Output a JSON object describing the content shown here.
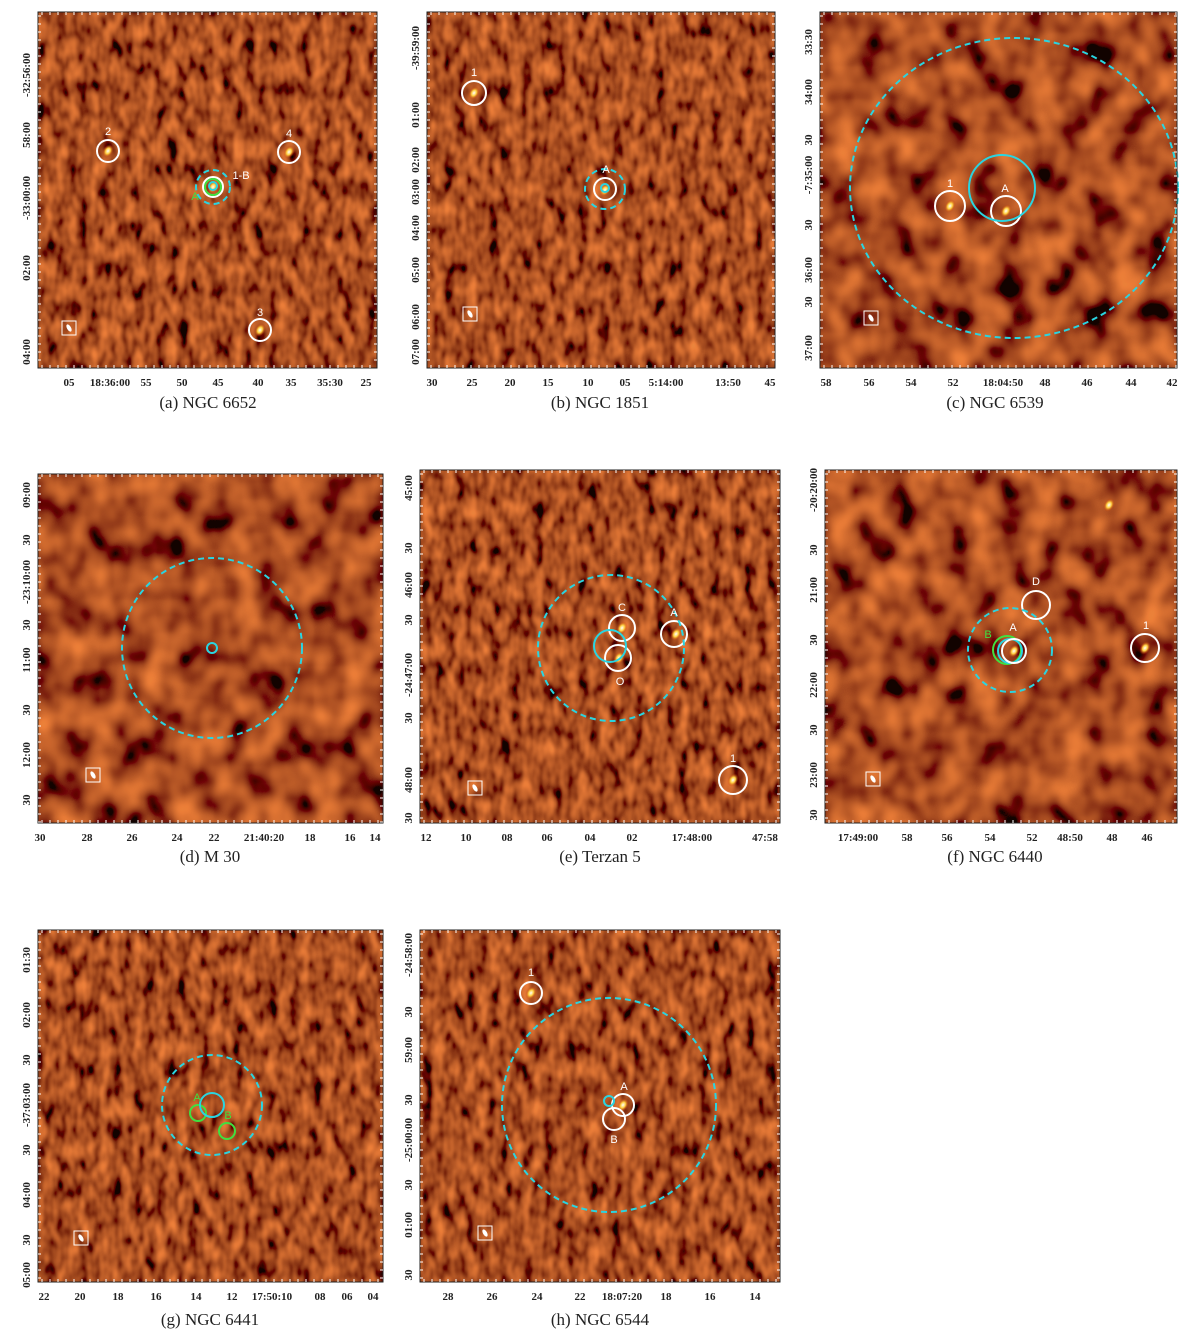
{
  "panels": [
    {
      "caption": "(a) NGC 6652",
      "x_ticks": [
        "05",
        "18:36:00",
        "55",
        "50",
        "45",
        "40",
        "35",
        "35:30",
        "25"
      ],
      "y_ticks": [
        "-32:56:00",
        "58:00",
        "-33:00:00",
        "02:00",
        "04:00"
      ],
      "labels": [
        "2",
        "4",
        "1-B",
        "A",
        "3"
      ]
    },
    {
      "caption": "(b) NGC 1851",
      "x_ticks": [
        "30",
        "25",
        "20",
        "15",
        "10",
        "05",
        "5:14:00",
        "13:50",
        "45"
      ],
      "y_ticks": [
        "-39:59:00",
        "01:00",
        "02:00",
        "03:00",
        "04:00",
        "05:00",
        "06:00",
        "07:00"
      ],
      "labels": [
        "1",
        "A"
      ]
    },
    {
      "caption": "(c) NGC 6539",
      "x_ticks": [
        "58",
        "56",
        "54",
        "52",
        "18:04:50",
        "48",
        "46",
        "44",
        "42"
      ],
      "y_ticks": [
        "33:30",
        "34:00",
        "30",
        "-7:35:00",
        "30",
        "36:00",
        "30",
        "37:00"
      ],
      "labels": [
        "1",
        "A"
      ]
    },
    {
      "caption": "(d) M 30",
      "x_ticks": [
        "30",
        "28",
        "26",
        "24",
        "22",
        "21:40:20",
        "18",
        "16",
        "14"
      ],
      "y_ticks": [
        "09:00",
        "30",
        "-23:10:00",
        "30",
        "11:00",
        "30",
        "12:00",
        "30"
      ],
      "labels": []
    },
    {
      "caption": "(e) Terzan 5",
      "x_ticks": [
        "12",
        "10",
        "08",
        "06",
        "04",
        "02",
        "17:48:00",
        "47:58"
      ],
      "y_ticks": [
        "45:00",
        "30",
        "46:00",
        "30",
        "-24:47:00",
        "30",
        "48:00",
        "30"
      ],
      "labels": [
        "C",
        "A",
        "O",
        "1"
      ]
    },
    {
      "caption": "(f) NGC 6440",
      "x_ticks": [
        "17:49:00",
        "58",
        "56",
        "54",
        "52",
        "48:50",
        "48",
        "46"
      ],
      "y_ticks": [
        "-20:20:00",
        "30",
        "21:00",
        "30",
        "22:00",
        "30",
        "23:00",
        "30"
      ],
      "labels": [
        "D",
        "B",
        "A",
        "1"
      ]
    },
    {
      "caption": "(g) NGC 6441",
      "x_ticks": [
        "22",
        "20",
        "18",
        "16",
        "14",
        "12",
        "17:50:10",
        "08",
        "06",
        "04"
      ],
      "y_ticks": [
        "01:30",
        "02:00",
        "30",
        "-37:03:00",
        "30",
        "04:00",
        "30",
        "05:00"
      ],
      "labels": [
        "A",
        "B"
      ]
    },
    {
      "caption": "(h) NGC 6544",
      "x_ticks": [
        "28",
        "26",
        "24",
        "22",
        "18:07:20",
        "18",
        "16",
        "14"
      ],
      "y_ticks": [
        "-24:58:00",
        "30",
        "59:00",
        "30",
        "-25:00:00",
        "30",
        "01:00",
        "30"
      ],
      "labels": [
        "1",
        "A",
        "B"
      ]
    }
  ]
}
